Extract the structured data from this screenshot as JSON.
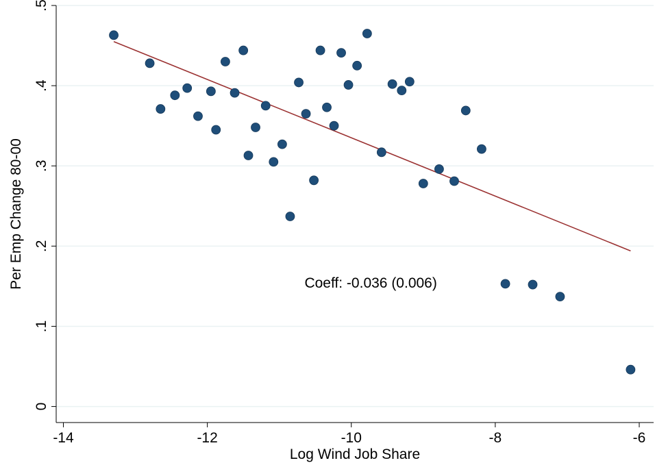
{
  "chart_data": {
    "type": "scatter",
    "title": "",
    "xlabel": "Log Wind Job Share",
    "ylabel": "Per Emp Change 80-00",
    "xlim": [
      -14.1,
      -5.8
    ],
    "ylim": [
      -0.02,
      0.5
    ],
    "x_ticks": [
      -14,
      -12,
      -10,
      -8,
      -6
    ],
    "x_tick_labels": [
      "-14",
      "-12",
      "-10",
      "-8",
      "-6"
    ],
    "y_ticks": [
      0,
      0.1,
      0.2,
      0.3,
      0.4,
      0.5
    ],
    "y_tick_labels": [
      "0",
      ".1",
      ".2",
      ".3",
      ".4",
      ".5"
    ],
    "grid": "horizontal",
    "marker_color": "#1f4e79",
    "fit_line_color": "#9b3232",
    "points": [
      {
        "x": -13.3,
        "y": 0.463
      },
      {
        "x": -12.8,
        "y": 0.428
      },
      {
        "x": -12.65,
        "y": 0.371
      },
      {
        "x": -12.45,
        "y": 0.388
      },
      {
        "x": -12.28,
        "y": 0.397
      },
      {
        "x": -12.13,
        "y": 0.362
      },
      {
        "x": -11.95,
        "y": 0.393
      },
      {
        "x": -11.88,
        "y": 0.345
      },
      {
        "x": -11.75,
        "y": 0.43
      },
      {
        "x": -11.62,
        "y": 0.391
      },
      {
        "x": -11.5,
        "y": 0.444
      },
      {
        "x": -11.43,
        "y": 0.313
      },
      {
        "x": -11.33,
        "y": 0.348
      },
      {
        "x": -11.19,
        "y": 0.375
      },
      {
        "x": -11.08,
        "y": 0.305
      },
      {
        "x": -10.96,
        "y": 0.327
      },
      {
        "x": -10.85,
        "y": 0.237
      },
      {
        "x": -10.73,
        "y": 0.404
      },
      {
        "x": -10.63,
        "y": 0.365
      },
      {
        "x": -10.52,
        "y": 0.282
      },
      {
        "x": -10.43,
        "y": 0.444
      },
      {
        "x": -10.34,
        "y": 0.373
      },
      {
        "x": -10.24,
        "y": 0.35
      },
      {
        "x": -10.14,
        "y": 0.441
      },
      {
        "x": -10.04,
        "y": 0.401
      },
      {
        "x": -9.92,
        "y": 0.425
      },
      {
        "x": -9.78,
        "y": 0.465
      },
      {
        "x": -9.58,
        "y": 0.317
      },
      {
        "x": -9.43,
        "y": 0.402
      },
      {
        "x": -9.3,
        "y": 0.394
      },
      {
        "x": -9.19,
        "y": 0.405
      },
      {
        "x": -9.0,
        "y": 0.278
      },
      {
        "x": -8.78,
        "y": 0.296
      },
      {
        "x": -8.57,
        "y": 0.281
      },
      {
        "x": -8.41,
        "y": 0.369
      },
      {
        "x": -8.19,
        "y": 0.321
      },
      {
        "x": -7.86,
        "y": 0.153
      },
      {
        "x": -7.48,
        "y": 0.152
      },
      {
        "x": -7.1,
        "y": 0.137
      },
      {
        "x": -6.12,
        "y": 0.046
      }
    ],
    "fit_line": {
      "x": [
        -13.3,
        -6.12
      ],
      "y": [
        0.455,
        0.194
      ]
    },
    "annotation": {
      "text": "Coeff: -0.036 (0.006)",
      "x": -10.65,
      "y": 0.148
    }
  }
}
